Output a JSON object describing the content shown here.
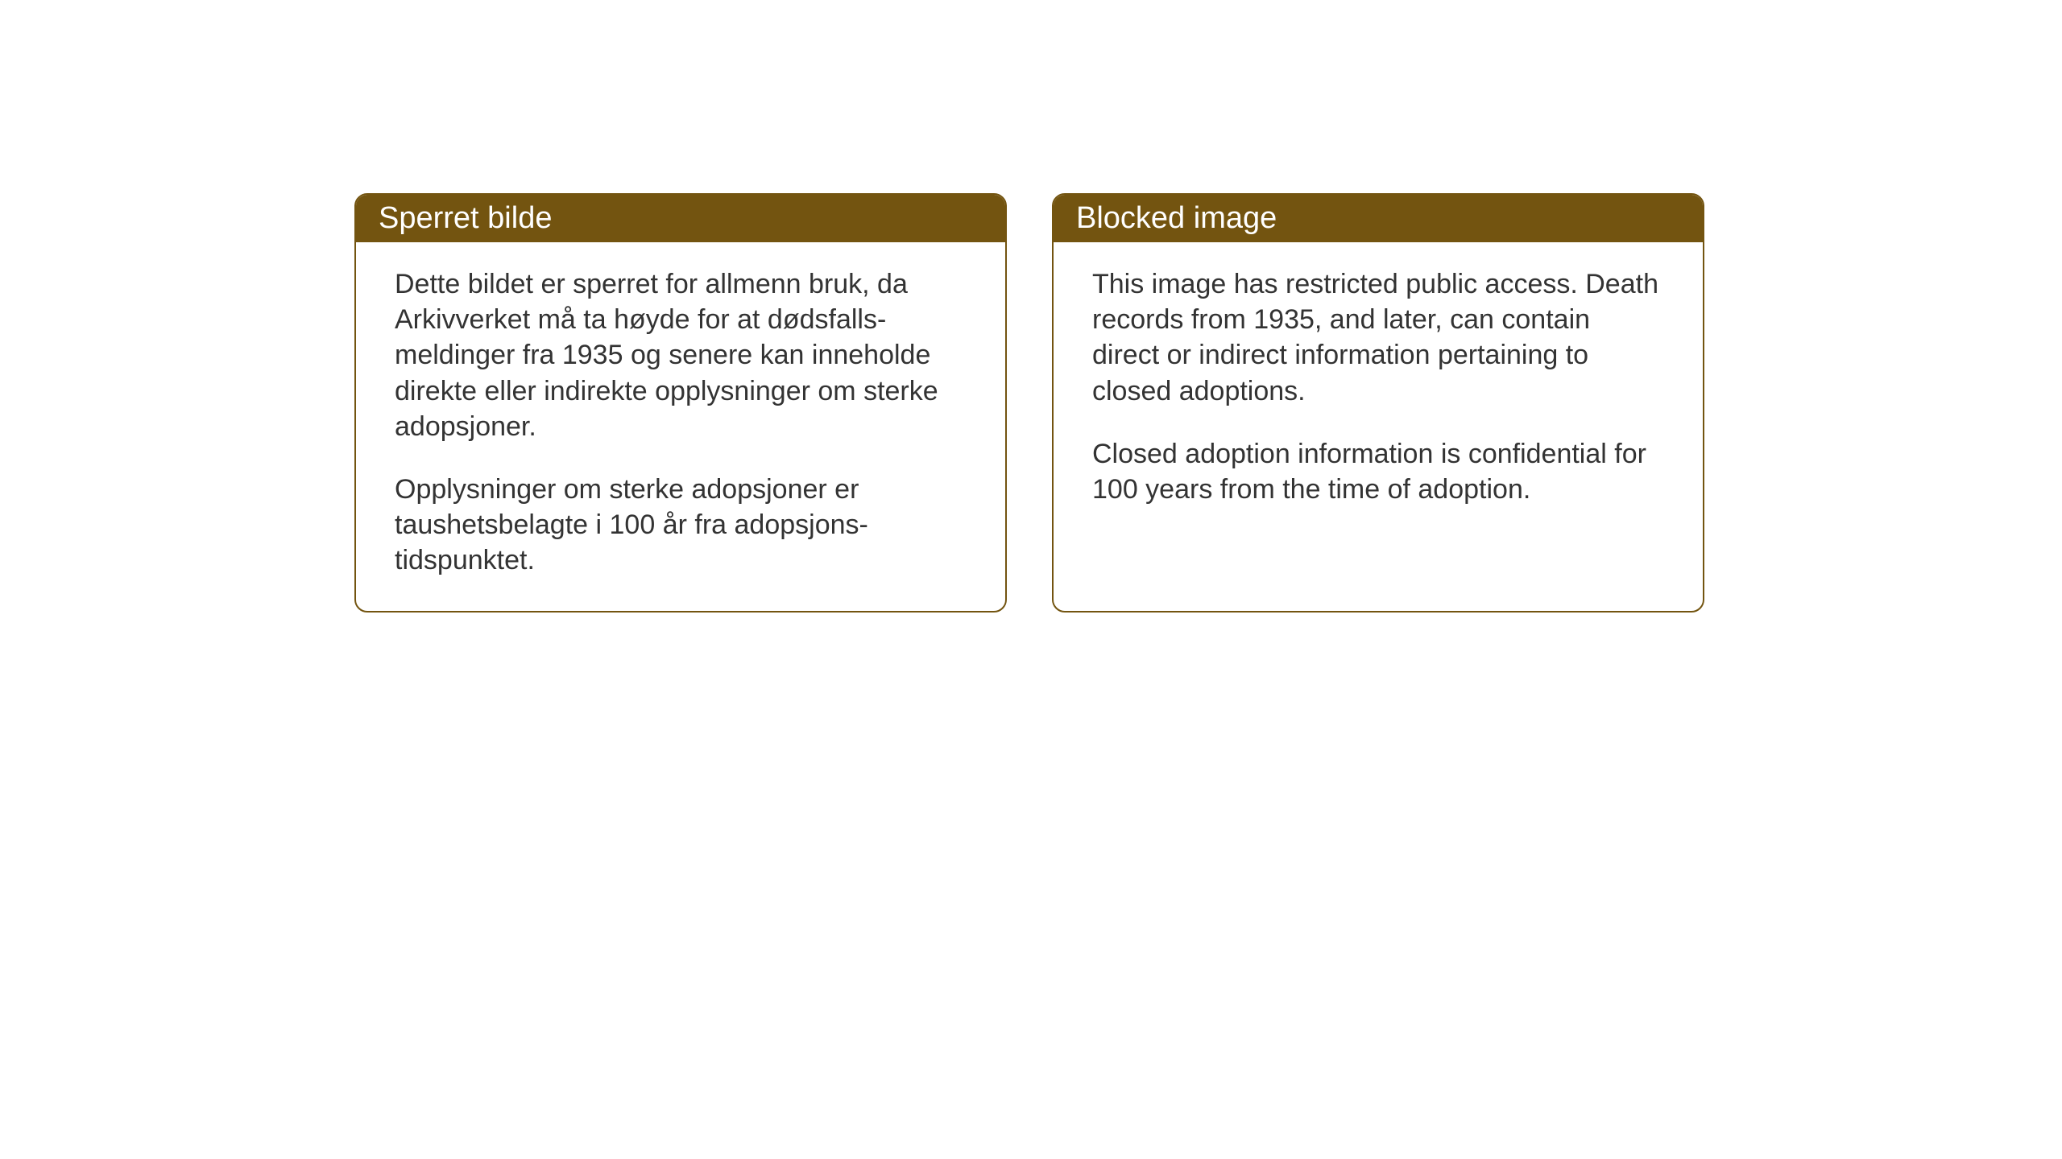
{
  "layout": {
    "background_color": "#ffffff",
    "card_border_color": "#735410",
    "card_header_bg": "#735410",
    "card_header_text_color": "#ffffff",
    "card_body_text_color": "#333333",
    "card_border_radius": 16,
    "header_fontsize": 38,
    "body_fontsize": 34
  },
  "cards": {
    "norwegian": {
      "title": "Sperret bilde",
      "paragraph1": "Dette bildet er sperret for allmenn bruk, da Arkivverket må ta høyde for at dødsfalls-meldinger fra 1935 og senere kan inneholde direkte eller indirekte opplysninger om sterke adopsjoner.",
      "paragraph2": "Opplysninger om sterke adopsjoner er taushetsbelagte i 100 år fra adopsjons-tidspunktet."
    },
    "english": {
      "title": "Blocked image",
      "paragraph1": "This image has restricted public access. Death records from 1935, and later, can contain direct or indirect information pertaining to closed adoptions.",
      "paragraph2": "Closed adoption information is confidential for 100 years from the time of adoption."
    }
  }
}
